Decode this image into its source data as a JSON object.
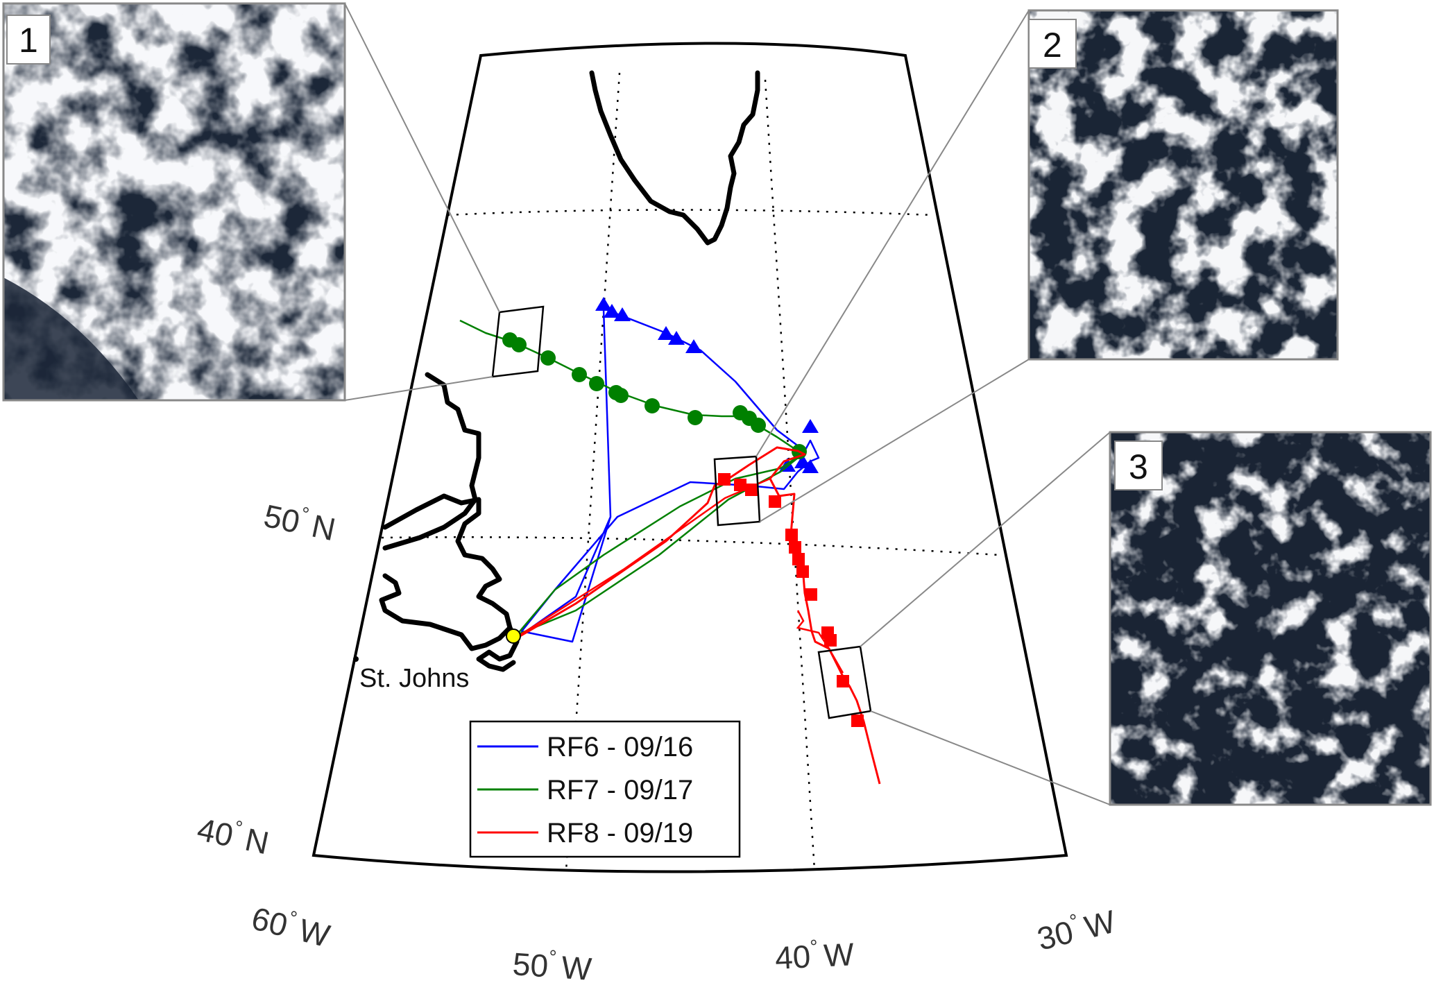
{
  "map": {
    "lon_labels": [
      {
        "deg": "60",
        "hemi": "W"
      },
      {
        "deg": "50",
        "hemi": "W"
      },
      {
        "deg": "40",
        "hemi": "W"
      },
      {
        "deg": "30",
        "hemi": "W"
      }
    ],
    "lat_labels": [
      {
        "deg": "50",
        "hemi": "N"
      },
      {
        "deg": "40",
        "hemi": "N"
      }
    ],
    "city_label": "St. Johns",
    "grid": "dotted",
    "coastline_color": "#000000"
  },
  "legend": {
    "placement": "bottom-center",
    "entries": [
      {
        "label": "RF6 - 09/16",
        "color": "#0000ff",
        "marker": "triangle"
      },
      {
        "label": "RF7 - 09/17",
        "color": "#008000",
        "marker": "circle"
      },
      {
        "label": "RF8 - 09/19",
        "color": "#ff0000",
        "marker": "square"
      }
    ]
  },
  "insets": [
    {
      "number": "1",
      "content": "satellite cloud image"
    },
    {
      "number": "2",
      "content": "satellite cloud image"
    },
    {
      "number": "3",
      "content": "satellite cloud image"
    }
  ],
  "colors": {
    "rf6": "#0000ff",
    "rf7": "#008000",
    "rf8": "#ff0000",
    "origin_marker": "#ffff00",
    "ocean_dark": "#1a2535",
    "cloud": "#eef1f4"
  }
}
